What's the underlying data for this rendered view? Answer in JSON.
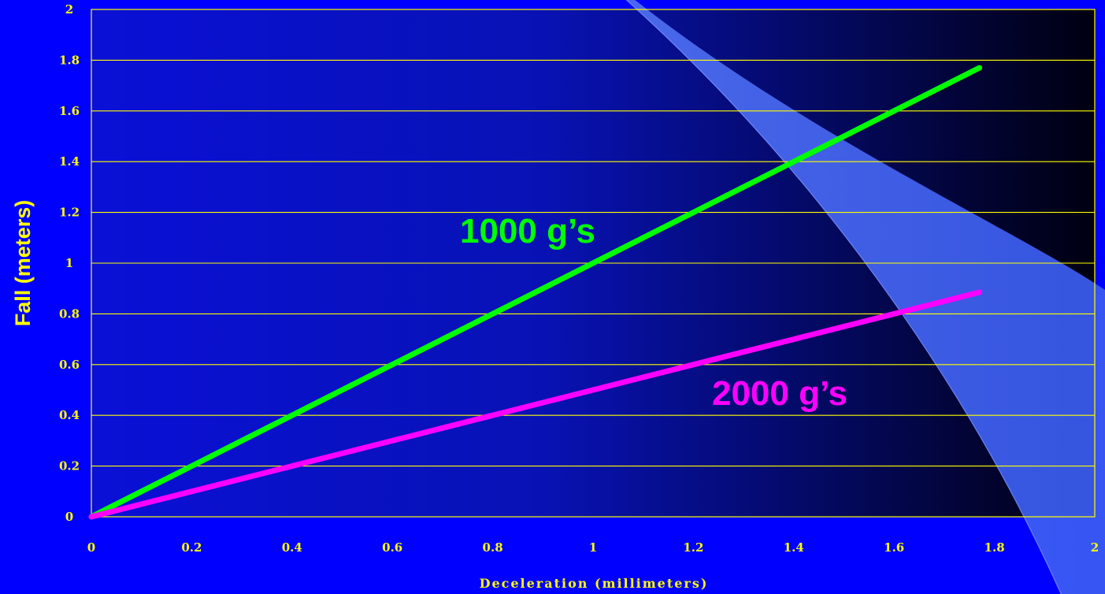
{
  "chart_data": {
    "type": "line",
    "xlabel": "Deceleration (millimeters)",
    "ylabel": "Fall (meters)",
    "xlim": [
      0,
      2
    ],
    "ylim": [
      0,
      2
    ],
    "x_ticks": [
      "0",
      "0.2",
      "0.4",
      "0.6",
      "0.8",
      "1",
      "1.2",
      "1.4",
      "1.6",
      "1.8",
      "2"
    ],
    "y_ticks": [
      "0",
      "0.2",
      "0.4",
      "0.6",
      "0.8",
      "1",
      "1.2",
      "1.4",
      "1.6",
      "1.8",
      "2"
    ],
    "grid": true,
    "series": [
      {
        "name": "1000 g’s",
        "color": "#00ff00",
        "x": [
          0,
          0.05,
          0.1,
          0.2,
          0.3,
          0.4,
          0.5,
          0.6,
          0.7,
          0.8,
          0.9,
          1.0,
          1.1,
          1.2,
          1.3,
          1.4,
          1.5,
          1.6,
          1.7,
          1.77
        ],
        "y": [
          0,
          0.05,
          0.1,
          0.2,
          0.3,
          0.4,
          0.5,
          0.6,
          0.7,
          0.8,
          0.9,
          1.0,
          1.1,
          1.2,
          1.3,
          1.4,
          1.5,
          1.6,
          1.7,
          1.77
        ]
      },
      {
        "name": "2000 g’s",
        "color": "#ff00ff",
        "x": [
          0,
          0.05,
          0.1,
          0.2,
          0.3,
          0.4,
          0.5,
          0.6,
          0.7,
          0.8,
          0.9,
          1.0,
          1.1,
          1.2,
          1.3,
          1.4,
          1.5,
          1.6,
          1.7,
          1.77
        ],
        "y": [
          0,
          0.025,
          0.05,
          0.1,
          0.15,
          0.2,
          0.25,
          0.3,
          0.35,
          0.4,
          0.45,
          0.5,
          0.55,
          0.6,
          0.65,
          0.7,
          0.75,
          0.8,
          0.85,
          0.885
        ]
      }
    ]
  }
}
